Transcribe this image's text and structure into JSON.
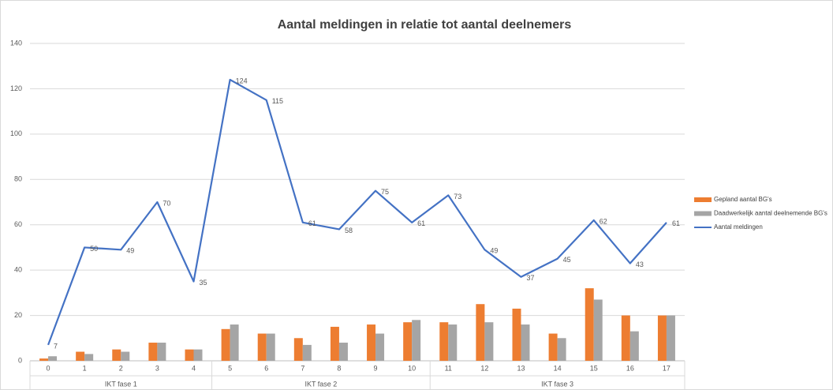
{
  "chart_data": {
    "type": "bar_line",
    "title": "Aantal meldingen in relatie tot aantal deelnemers",
    "categories": [
      "0",
      "1",
      "2",
      "3",
      "4",
      "5",
      "6",
      "7",
      "8",
      "9",
      "10",
      "11",
      "12",
      "13",
      "14",
      "15",
      "16",
      "17"
    ],
    "category_groups": [
      {
        "name": "IKT fase 1",
        "count": 5
      },
      {
        "name": "IKT fase 2",
        "count": 6
      },
      {
        "name": "IKT fase 3",
        "count": 7
      }
    ],
    "series": [
      {
        "name": "Gepland aantal BG's",
        "type": "bar",
        "color": "#ed7d31",
        "values": [
          1,
          4,
          5,
          8,
          5,
          14,
          12,
          10,
          15,
          16,
          17,
          17,
          25,
          23,
          12,
          32,
          20,
          20
        ]
      },
      {
        "name": "Daadwerkelijk aantal deelnemende BG's",
        "type": "bar",
        "color": "#a5a5a5",
        "values": [
          2,
          3,
          4,
          8,
          5,
          16,
          12,
          7,
          8,
          12,
          18,
          16,
          17,
          16,
          10,
          27,
          13,
          20
        ]
      },
      {
        "name": "Aantal meldingen",
        "type": "line",
        "color": "#4472c4",
        "values": [
          7,
          50,
          49,
          70,
          35,
          124,
          115,
          61,
          58,
          75,
          61,
          73,
          49,
          37,
          45,
          62,
          43,
          61
        ],
        "data_labels": true
      }
    ],
    "ylim": [
      0,
      140
    ],
    "yticks": [
      0,
      20,
      40,
      60,
      80,
      100,
      120,
      140
    ],
    "grid": true,
    "legend": "right"
  }
}
